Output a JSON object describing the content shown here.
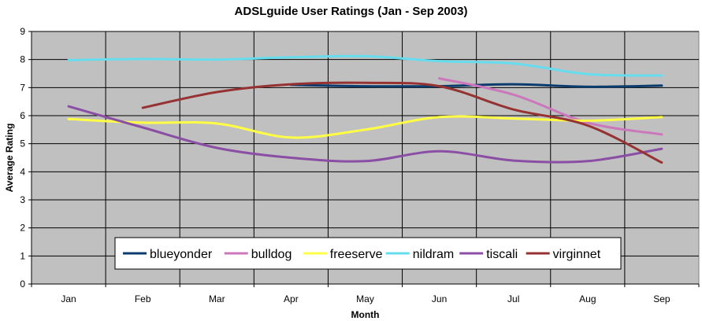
{
  "chart_data": {
    "type": "line",
    "title": "ADSLguide User Ratings (Jan - Sep 2003)",
    "xlabel": "Month",
    "ylabel": "Average Rating",
    "categories": [
      "Jan",
      "Feb",
      "Mar",
      "Apr",
      "May",
      "Jun",
      "Jul",
      "Aug",
      "Sep"
    ],
    "yticks": [
      "0",
      "1",
      "2",
      "3",
      "4",
      "5",
      "6",
      "7",
      "8",
      "9"
    ],
    "ylim": [
      0,
      9
    ],
    "grid": true,
    "legend_position": "bottom-inside",
    "plot_background": "#c0c0c0",
    "series": [
      {
        "name": "blueyonder",
        "color": "#0b3c6e",
        "values": [
          null,
          null,
          null,
          7.1,
          7.05,
          7.05,
          7.12,
          7.03,
          7.07
        ]
      },
      {
        "name": "bulldog",
        "color": "#cc77bb",
        "values": [
          null,
          null,
          null,
          null,
          null,
          7.33,
          6.75,
          5.75,
          5.33
        ]
      },
      {
        "name": "freeserve",
        "color": "#ffff44",
        "values": [
          5.88,
          5.75,
          5.72,
          5.22,
          5.5,
          5.95,
          5.9,
          5.82,
          5.95
        ]
      },
      {
        "name": "nildram",
        "color": "#66ddee",
        "values": [
          7.98,
          8.02,
          8.0,
          8.08,
          8.12,
          7.94,
          7.86,
          7.48,
          7.43
        ]
      },
      {
        "name": "tiscali",
        "color": "#8a4ea4",
        "values": [
          6.33,
          5.58,
          4.85,
          4.5,
          4.38,
          4.73,
          4.4,
          4.38,
          4.82
        ]
      },
      {
        "name": "virginnet",
        "color": "#963232",
        "values": [
          null,
          6.28,
          6.84,
          7.12,
          7.17,
          7.05,
          6.22,
          5.65,
          4.33
        ]
      }
    ]
  }
}
